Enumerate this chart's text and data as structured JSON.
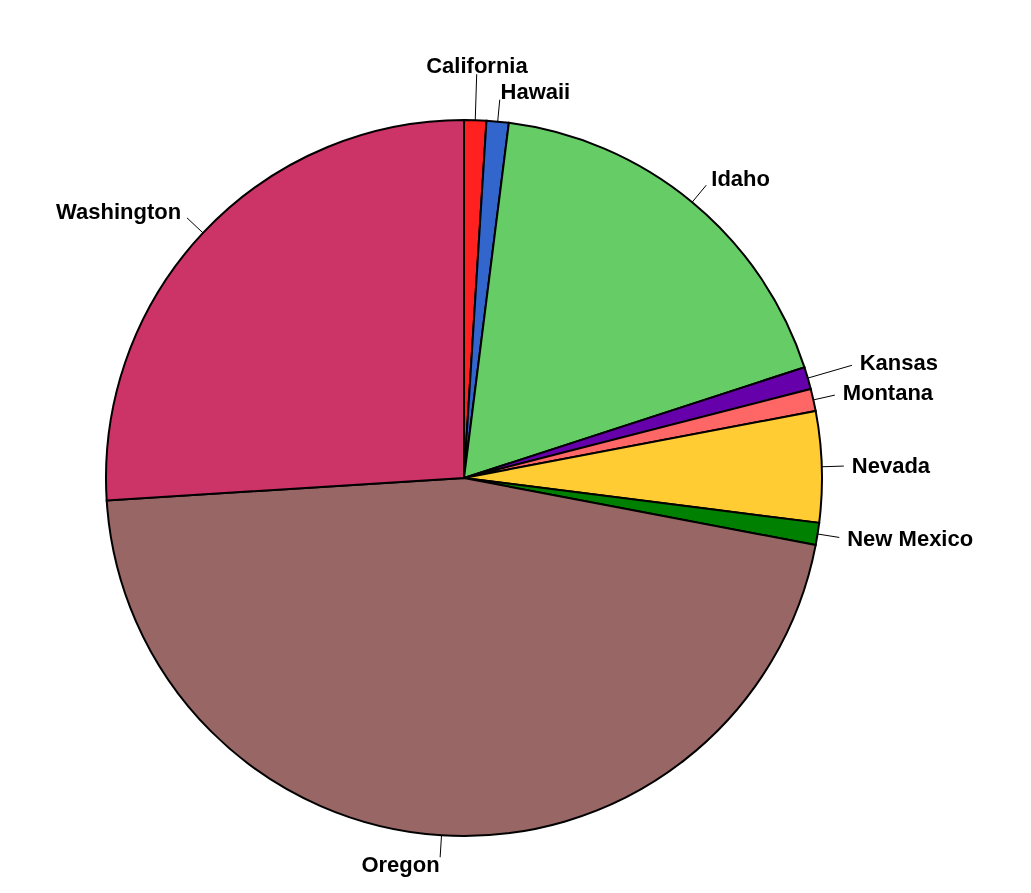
{
  "chart_data": {
    "type": "pie",
    "categories": [
      "California",
      "Hawaii",
      "Idaho",
      "Kansas",
      "Montana",
      "Nevada",
      "New Mexico",
      "Oregon",
      "Washington"
    ],
    "values": [
      1,
      1,
      18,
      1,
      1,
      5,
      1,
      46,
      26
    ],
    "colors": [
      "#ff2020",
      "#3366cc",
      "#66cc66",
      "#6600aa",
      "#ff6666",
      "#ffcc33",
      "#008000",
      "#996666",
      "#cc3366"
    ]
  }
}
